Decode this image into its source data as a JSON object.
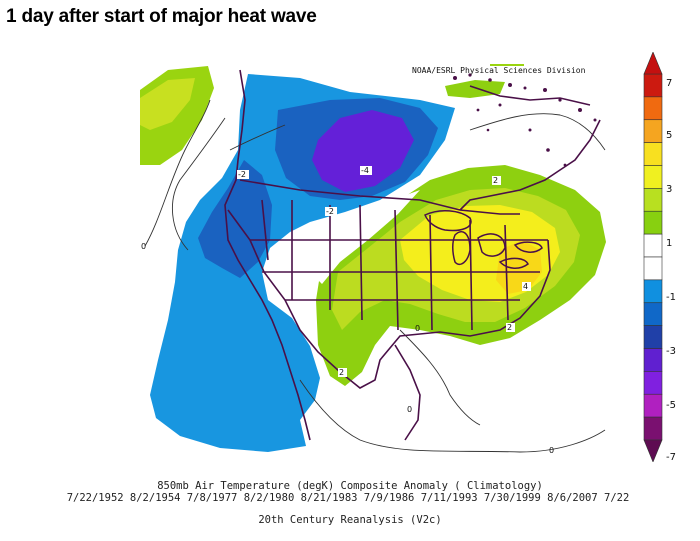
{
  "title": "1 day after start of major heat wave",
  "credit": "NOAA/ESRL Physical Sciences Division",
  "caption": {
    "variable": "850mb Air Temperature (degK) Composite Anomaly ( Climatology)",
    "dates": "7/22/1952 8/2/1954 7/8/1977 8/2/1980 8/21/1983 7/9/1986 7/11/1993 7/30/1999 8/6/2007 7/22",
    "source": "20th Century Reanalysis (V2c)"
  },
  "contour_labels": [
    "-2",
    "-4",
    "-2",
    "0",
    "2",
    "4",
    "2",
    "0",
    "2",
    "0",
    "0"
  ],
  "colorbar": {
    "labels": [
      "7",
      "5",
      "3",
      "1",
      "-1",
      "-3",
      "-5",
      "-7"
    ],
    "colors": [
      "#cc1a10",
      "#f06a10",
      "#f5a520",
      "#f8e020",
      "#f0f020",
      "#b8e020",
      "#88d010",
      "#ffffff",
      "#ffffff",
      "#1090e0",
      "#1068c8",
      "#2040a8",
      "#6020d0",
      "#8020e0",
      "#b020c0",
      "#7a1070"
    ]
  }
}
